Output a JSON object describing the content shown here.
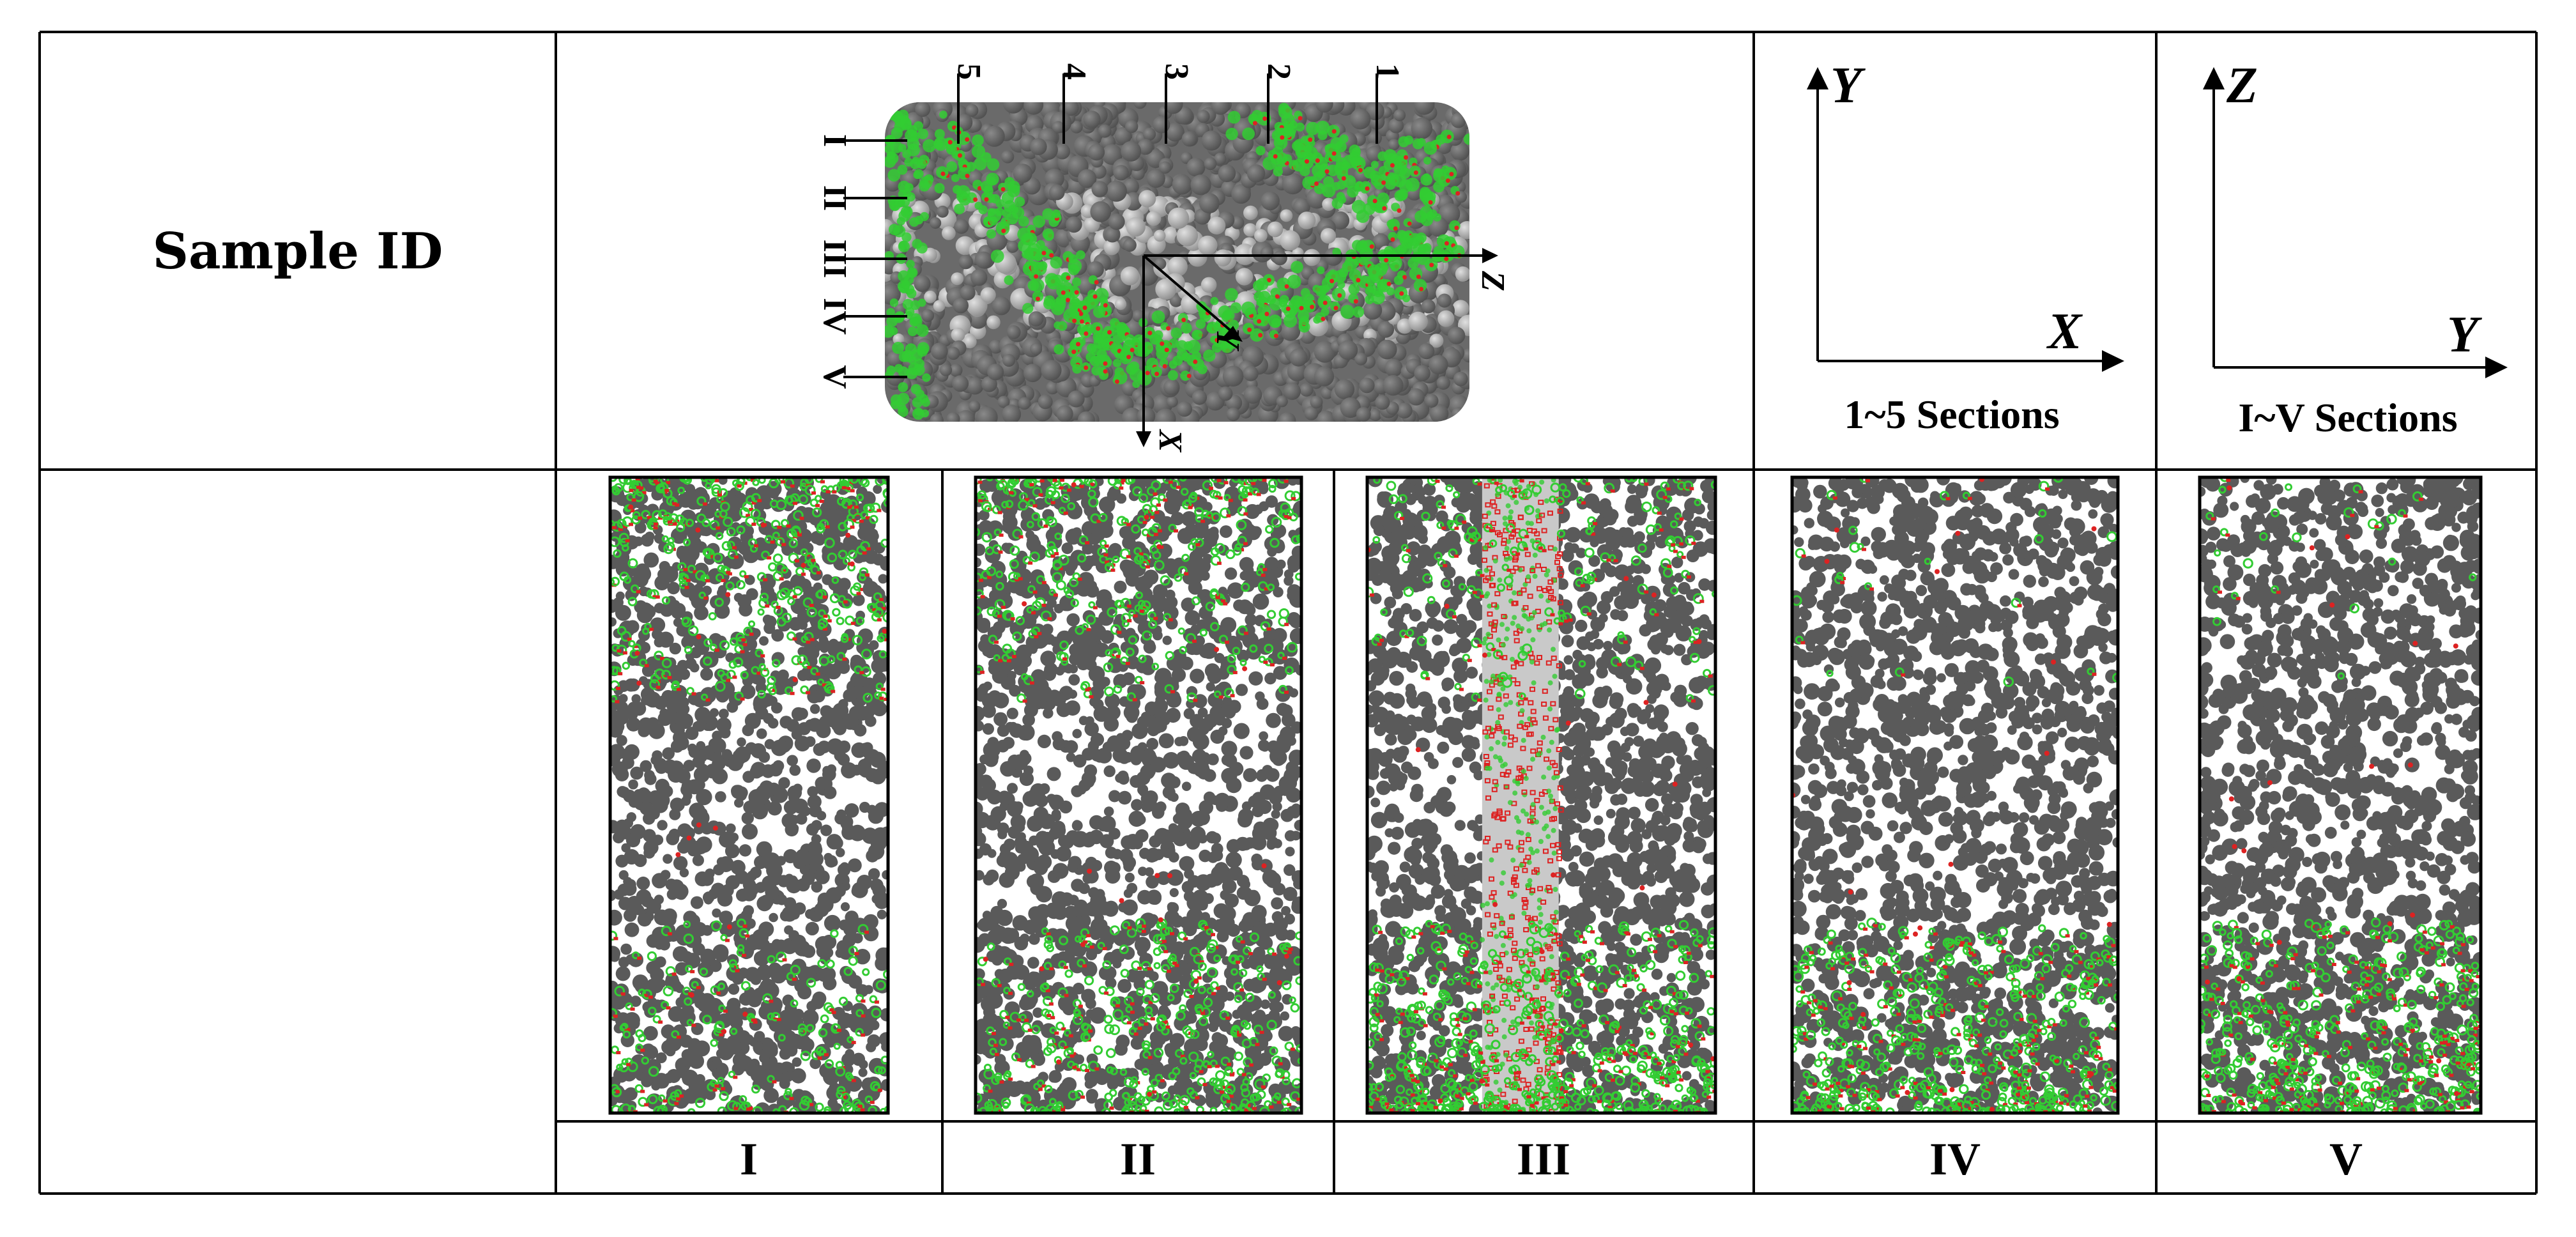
{
  "table": {
    "row1_header": "Sample ID",
    "row2_header": ""
  },
  "model_view": {
    "top_section_numbers": [
      "5",
      "4",
      "3",
      "2",
      "1"
    ],
    "side_section_numerals": [
      "I",
      "II",
      "III",
      "IV",
      "V"
    ],
    "axis_labels": {
      "z": "Z",
      "y": "Y",
      "x": "X"
    },
    "colors": {
      "particle": "#5a5a5a",
      "particle_light": "#9a9a9a",
      "bond_green": "#33cc33",
      "crack_red": "#dd2222",
      "marker_red": "#cc2020"
    }
  },
  "axes_panels": [
    {
      "vertical_axis": "Y",
      "horizontal_axis": "X",
      "caption": "1~5 Sections"
    },
    {
      "vertical_axis": "Z",
      "horizontal_axis": "Y",
      "caption": "I~V Sections"
    }
  ],
  "section_panels": [
    {
      "label": "I",
      "damage_top": 0.7,
      "damage_bottom": 0.3,
      "central_band": false
    },
    {
      "label": "II",
      "damage_top": 0.6,
      "damage_bottom": 0.6,
      "central_band": false
    },
    {
      "label": "III",
      "damage_top": 0.3,
      "damage_bottom": 0.9,
      "central_band": true
    },
    {
      "label": "IV",
      "damage_top": 0.05,
      "damage_bottom": 0.8,
      "central_band": false
    },
    {
      "label": "V",
      "damage_top": 0.05,
      "damage_bottom": 0.75,
      "central_band": false
    }
  ]
}
